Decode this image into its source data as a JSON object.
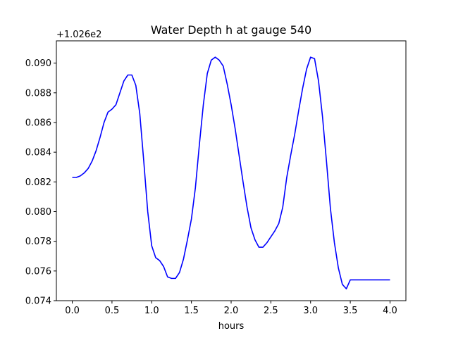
{
  "chart_data": {
    "type": "line",
    "title": "Water Depth h at gauge 540",
    "xlabel": "hours",
    "ylabel": "",
    "y_offset_label": "+1.026e2",
    "xlim": [
      -0.2,
      4.2
    ],
    "ylim": [
      0.074,
      0.0915
    ],
    "xticks": [
      0.0,
      0.5,
      1.0,
      1.5,
      2.0,
      2.5,
      3.0,
      3.5,
      4.0
    ],
    "xtick_labels": [
      "0.0",
      "0.5",
      "1.0",
      "1.5",
      "2.0",
      "2.5",
      "3.0",
      "3.5",
      "4.0"
    ],
    "yticks": [
      0.074,
      0.076,
      0.078,
      0.08,
      0.082,
      0.084,
      0.086,
      0.088,
      0.09
    ],
    "ytick_labels": [
      "0.074",
      "0.076",
      "0.078",
      "0.080",
      "0.082",
      "0.084",
      "0.086",
      "0.088",
      "0.090"
    ],
    "grid": false,
    "series": [
      {
        "color": "#0000ff",
        "x": [
          0.0,
          0.05,
          0.1,
          0.15,
          0.2,
          0.25,
          0.3,
          0.35,
          0.4,
          0.45,
          0.5,
          0.55,
          0.6,
          0.65,
          0.7,
          0.75,
          0.8,
          0.85,
          0.9,
          0.95,
          1.0,
          1.05,
          1.1,
          1.15,
          1.2,
          1.25,
          1.3,
          1.35,
          1.4,
          1.45,
          1.5,
          1.55,
          1.6,
          1.65,
          1.7,
          1.75,
          1.8,
          1.85,
          1.9,
          1.95,
          2.0,
          2.05,
          2.1,
          2.15,
          2.2,
          2.25,
          2.3,
          2.35,
          2.4,
          2.45,
          2.5,
          2.55,
          2.6,
          2.65,
          2.7,
          2.75,
          2.8,
          2.85,
          2.9,
          2.95,
          3.0,
          3.05,
          3.1,
          3.15,
          3.2,
          3.25,
          3.3,
          3.35,
          3.4,
          3.45,
          3.5,
          3.55,
          3.6,
          3.65,
          3.7,
          3.75,
          3.8,
          3.85,
          3.9,
          3.95,
          4.0
        ],
        "y": [
          0.0823,
          0.0823,
          0.0824,
          0.0826,
          0.0829,
          0.0834,
          0.0841,
          0.085,
          0.086,
          0.0867,
          0.0869,
          0.0872,
          0.088,
          0.0888,
          0.0892,
          0.0892,
          0.0885,
          0.0866,
          0.0834,
          0.08,
          0.0777,
          0.0769,
          0.0767,
          0.0763,
          0.0756,
          0.0755,
          0.0755,
          0.0759,
          0.0768,
          0.0781,
          0.0795,
          0.0816,
          0.0845,
          0.0872,
          0.0893,
          0.0902,
          0.0904,
          0.0902,
          0.0898,
          0.0886,
          0.0872,
          0.0856,
          0.0838,
          0.082,
          0.0803,
          0.0789,
          0.0781,
          0.0776,
          0.0776,
          0.0779,
          0.0783,
          0.0787,
          0.0792,
          0.0803,
          0.0823,
          0.0838,
          0.0852,
          0.0868,
          0.0883,
          0.0896,
          0.0904,
          0.0903,
          0.0888,
          0.0864,
          0.0834,
          0.0802,
          0.0779,
          0.0762,
          0.0751,
          0.0748,
          0.0754,
          0.0754,
          0.0754,
          0.0754,
          0.0754,
          0.0754,
          0.0754,
          0.0754,
          0.0754,
          0.0754,
          0.0754
        ]
      }
    ]
  }
}
